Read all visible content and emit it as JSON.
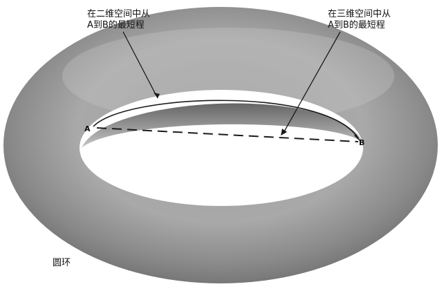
{
  "labels": {
    "path_2d_line1": "在二维空间中从",
    "path_2d_line2": "A到B的最短程",
    "path_3d_line1": "在三维空间中从",
    "path_3d_line2": "A到B的最短程",
    "point_a": "A",
    "point_b": "B",
    "torus": "圆环"
  },
  "colors": {
    "torus_fill_light": "#b8b8b8",
    "torus_fill_dark": "#6e6e6e",
    "line": "#1a1a1a",
    "background": "#ffffff"
  }
}
